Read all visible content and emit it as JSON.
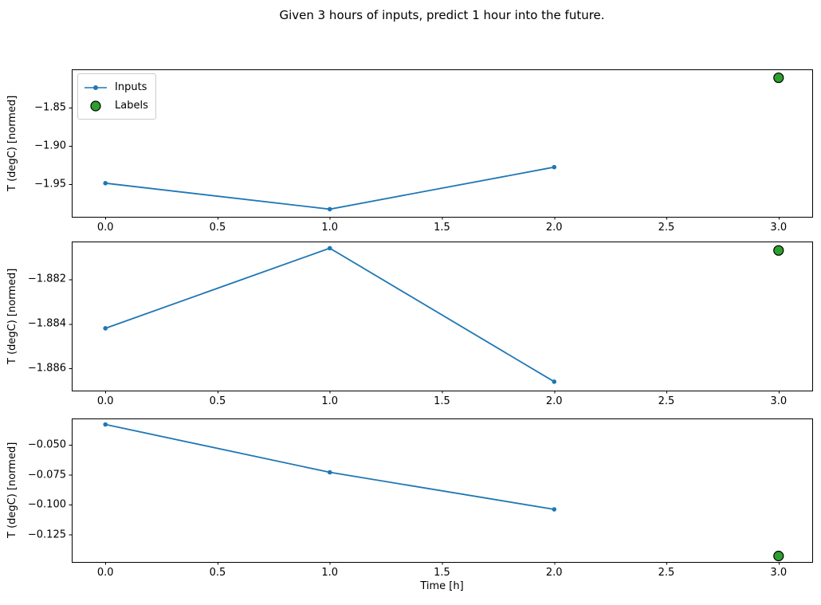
{
  "figure": {
    "title": "Given 3 hours of inputs, predict 1 hour into the future."
  },
  "chart_data": {
    "type": "line",
    "title": "Given 3 hours of inputs, predict 1 hour into the future.",
    "xlabel": "Time [h]",
    "legend": {
      "position": "upper left of first subplot",
      "entries": [
        {
          "label": "Inputs",
          "marker": "line-with-dot",
          "color": "#1f77b4"
        },
        {
          "label": "Labels",
          "marker": "large-circle",
          "color": "#2ca02c",
          "edge_color": "#000000"
        }
      ]
    },
    "colors": {
      "inputs_line": "#1f77b4",
      "labels_marker": "#2ca02c",
      "labels_marker_edge": "#000000",
      "axes": "#000000"
    },
    "x_inputs": [
      0,
      1,
      2
    ],
    "x_label_point": 3,
    "xticks": [
      0.0,
      0.5,
      1.0,
      1.5,
      2.0,
      2.5,
      3.0
    ],
    "xtick_labels": [
      "0.0",
      "0.5",
      "1.0",
      "1.5",
      "2.0",
      "2.5",
      "3.0"
    ],
    "xlim": [
      -0.15,
      3.15
    ],
    "grid": false,
    "subplots": [
      {
        "ylabel": "T (degC) [normed]",
        "series": [
          {
            "name": "Inputs",
            "x": [
              0,
              1,
              2
            ],
            "values": [
              -1.949,
              -1.983,
              -1.928
            ]
          }
        ],
        "label_point": {
          "x": 3,
          "value": -1.811
        },
        "yticks": [
          -1.85,
          -1.9,
          -1.95
        ],
        "ytick_labels": [
          "−1.85",
          "−1.90",
          "−1.95"
        ],
        "ylim": [
          -1.993,
          -1.8
        ]
      },
      {
        "ylabel": "T (degC) [normed]",
        "series": [
          {
            "name": "Inputs",
            "x": [
              0,
              1,
              2
            ],
            "values": [
              -1.8842,
              -1.8806,
              -1.8866
            ]
          }
        ],
        "label_point": {
          "x": 3,
          "value": -1.8807
        },
        "yticks": [
          -1.882,
          -1.884,
          -1.886
        ],
        "ytick_labels": [
          "−1.882",
          "−1.884",
          "−1.886"
        ],
        "ylim": [
          -1.887,
          -1.8803
        ]
      },
      {
        "ylabel": "T (degC) [normed]",
        "series": [
          {
            "name": "Inputs",
            "x": [
              0,
              1,
              2
            ],
            "values": [
              -0.033,
              -0.073,
              -0.104
            ]
          }
        ],
        "label_point": {
          "x": 3,
          "value": -0.143
        },
        "yticks": [
          -0.05,
          -0.075,
          -0.1,
          -0.125
        ],
        "ytick_labels": [
          "−0.050",
          "−0.075",
          "−0.100",
          "−0.125"
        ],
        "ylim": [
          -0.148,
          -0.028
        ]
      }
    ]
  }
}
